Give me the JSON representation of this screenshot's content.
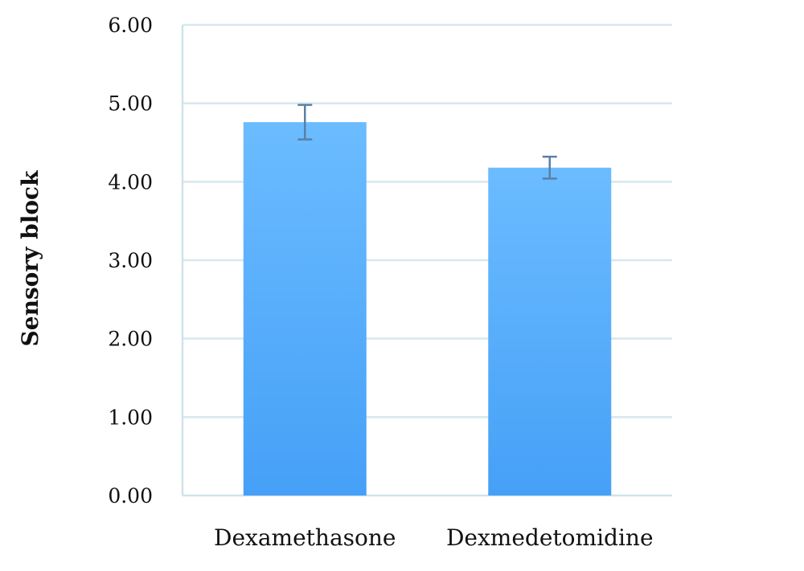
{
  "chart_data": {
    "type": "bar",
    "title": "",
    "xlabel": "",
    "ylabel": "Sensory block",
    "categories": [
      "Dexamethasone",
      "Dexmedetomidine"
    ],
    "values": [
      4.76,
      4.18
    ],
    "error": [
      0.22,
      0.14
    ],
    "ylim": [
      0,
      6
    ],
    "yticks": [
      0,
      1,
      2,
      3,
      4,
      5,
      6
    ],
    "ytick_labels": [
      "0.00",
      "1.00",
      "2.00",
      "3.00",
      "4.00",
      "5.00",
      "6.00"
    ],
    "grid": true,
    "legend": "none",
    "colors": {
      "bar_top": "#6bbcff",
      "bar_bottom": "#46a0f7",
      "error_bar": "#5a7fa8",
      "grid": "#d6e8ee",
      "axis": "#cfe3ea"
    }
  }
}
